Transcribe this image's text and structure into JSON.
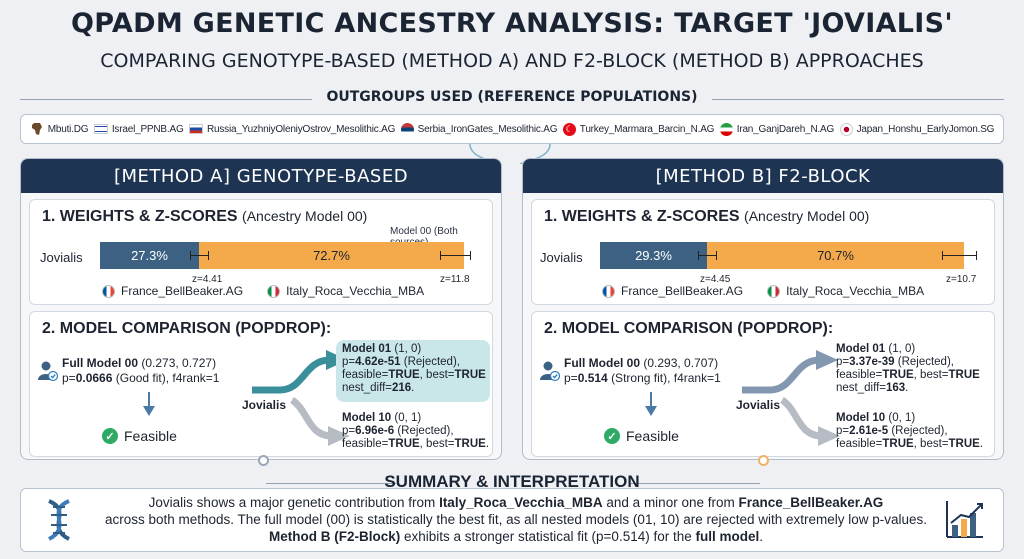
{
  "title": "QPADM GENETIC ANCESTRY ANALYSIS: TARGET 'JOVIALIS'",
  "subtitle": "COMPARING GENOTYPE-BASED (METHOD A) AND F2-BLOCK (METHOD B) APPROACHES",
  "outgroups": {
    "heading": "OUTGROUPS USED (REFERENCE POPULATIONS)",
    "items": [
      {
        "label": "Mbuti.DG",
        "icon": "africa-map-icon"
      },
      {
        "label": "Israel_PPNB.AG",
        "icon": "israel-flag-icon"
      },
      {
        "label": "Russia_YuzhniyOleniyOstrov_Mesolithic.AG",
        "icon": "russia-flag-icon"
      },
      {
        "label": "Serbia_IronGates_Mesolithic.AG",
        "icon": "serbia-flag-icon"
      },
      {
        "label": "Turkey_Marmara_Barcin_N.AG",
        "icon": "turkey-flag-icon"
      },
      {
        "label": "Iran_GanjDareh_N.AG",
        "icon": "iran-flag-icon"
      },
      {
        "label": "Japan_Honshu_EarlyJomon.SG",
        "icon": "japan-flag-icon"
      }
    ]
  },
  "methodA": {
    "header": "[METHOD A] GENOTYPE-BASED",
    "weights_title": "1. WEIGHTS & Z-SCORES",
    "weights_sub": "(Ancestry Model 00)",
    "model_tag": "Model 00 (Both sources)",
    "target": "Jovialis",
    "seg1": "27.3%",
    "seg2": "72.7%",
    "z1": "z=4.41",
    "z2": "z=11.8",
    "src1": "France_BellBeaker.AG",
    "src2": "Italy_Roca_Vecchia_MBA",
    "comparison_title": "2. MODEL COMPARISON (POPDROP):",
    "full_name": "Full Model 00",
    "full_weights": "(0.273, 0.727)",
    "full_p_label": "p=",
    "full_p": "0.0666",
    "full_fit": "(Good fit), f4rank=1",
    "feasible": "Feasible",
    "flow_label": "Jovialis",
    "m01_name": "Model 01",
    "m01_w": "(1, 0)",
    "m01_p": "4.62e-51",
    "m01_rej": "(Rejected),",
    "m01_feas_label": "feasible=",
    "m01_feas": "TRUE",
    "m01_best_label": ", best=",
    "m01_best": "TRUE",
    "m01_nest_label": "nest_diff=",
    "m01_nest": "216",
    "m10_name": "Model 10",
    "m10_w": "(0, 1)",
    "m10_p": "6.96e-6",
    "m10_rej": "(Rejected),",
    "m10_feas": "TRUE",
    "m10_best": "TRUE"
  },
  "methodB": {
    "header": "[METHOD B] F2-BLOCK",
    "weights_title": "1. WEIGHTS & Z-SCORES",
    "weights_sub": "(Ancestry Model 00)",
    "target": "Jovialis",
    "seg1": "29.3%",
    "seg2": "70.7%",
    "z1": "z=4.45",
    "z2": "z=10.7",
    "src1": "France_BellBeaker.AG",
    "src2": "Italy_Roca_Vecchia_MBA",
    "comparison_title": "2. MODEL COMPARISON (POPDROP):",
    "full_name": "Full Model 00",
    "full_weights": "(0.293, 0.707)",
    "full_p_label": "p=",
    "full_p": "0.514",
    "full_fit": "(Strong fit), f4rank=1",
    "feasible": "Feasible",
    "flow_label": "Jovialis",
    "m01_name": "Model 01",
    "m01_w": "(1, 0)",
    "m01_p": "3.37e-39",
    "m01_rej": "(Rejected),",
    "m01_feas_label": "feasible=",
    "m01_feas": "TRUE",
    "m01_best_label": ", best=",
    "m01_best": "TRUE",
    "m01_nest_label": "nest_diff=",
    "m01_nest": "163",
    "m10_name": "Model 10",
    "m10_w": "(0, 1)",
    "m10_p": "2.61e-5",
    "m10_rej": "(Rejected),",
    "m10_feas": "TRUE",
    "m10_best": "TRUE"
  },
  "summary": {
    "heading": "SUMMARY & INTERPRETATION",
    "l1a": "Jovialis shows a major genetic contribution from ",
    "l1b": "Italy_Roca_Vecchia_MBA",
    "l1c": " and a minor one from ",
    "l1d": "France_BellBeaker.AG",
    "l2": "across both methods. The full model (00) is statistically the best fit, as all nested models (01, 10) are rejected with extremely low p-values.",
    "l3a": "Method B (F2-Block)",
    "l3b": " exhibits a stronger statistical fit (p=0.514) for the ",
    "l3c": "full model",
    "l3d": "."
  },
  "colors": {
    "navy": "#1d3553",
    "blue_segment": "#3d6183",
    "orange_segment": "#f4a94a",
    "feasible_green": "#2eaa64",
    "highlight_teal": "#c9e6e8"
  }
}
